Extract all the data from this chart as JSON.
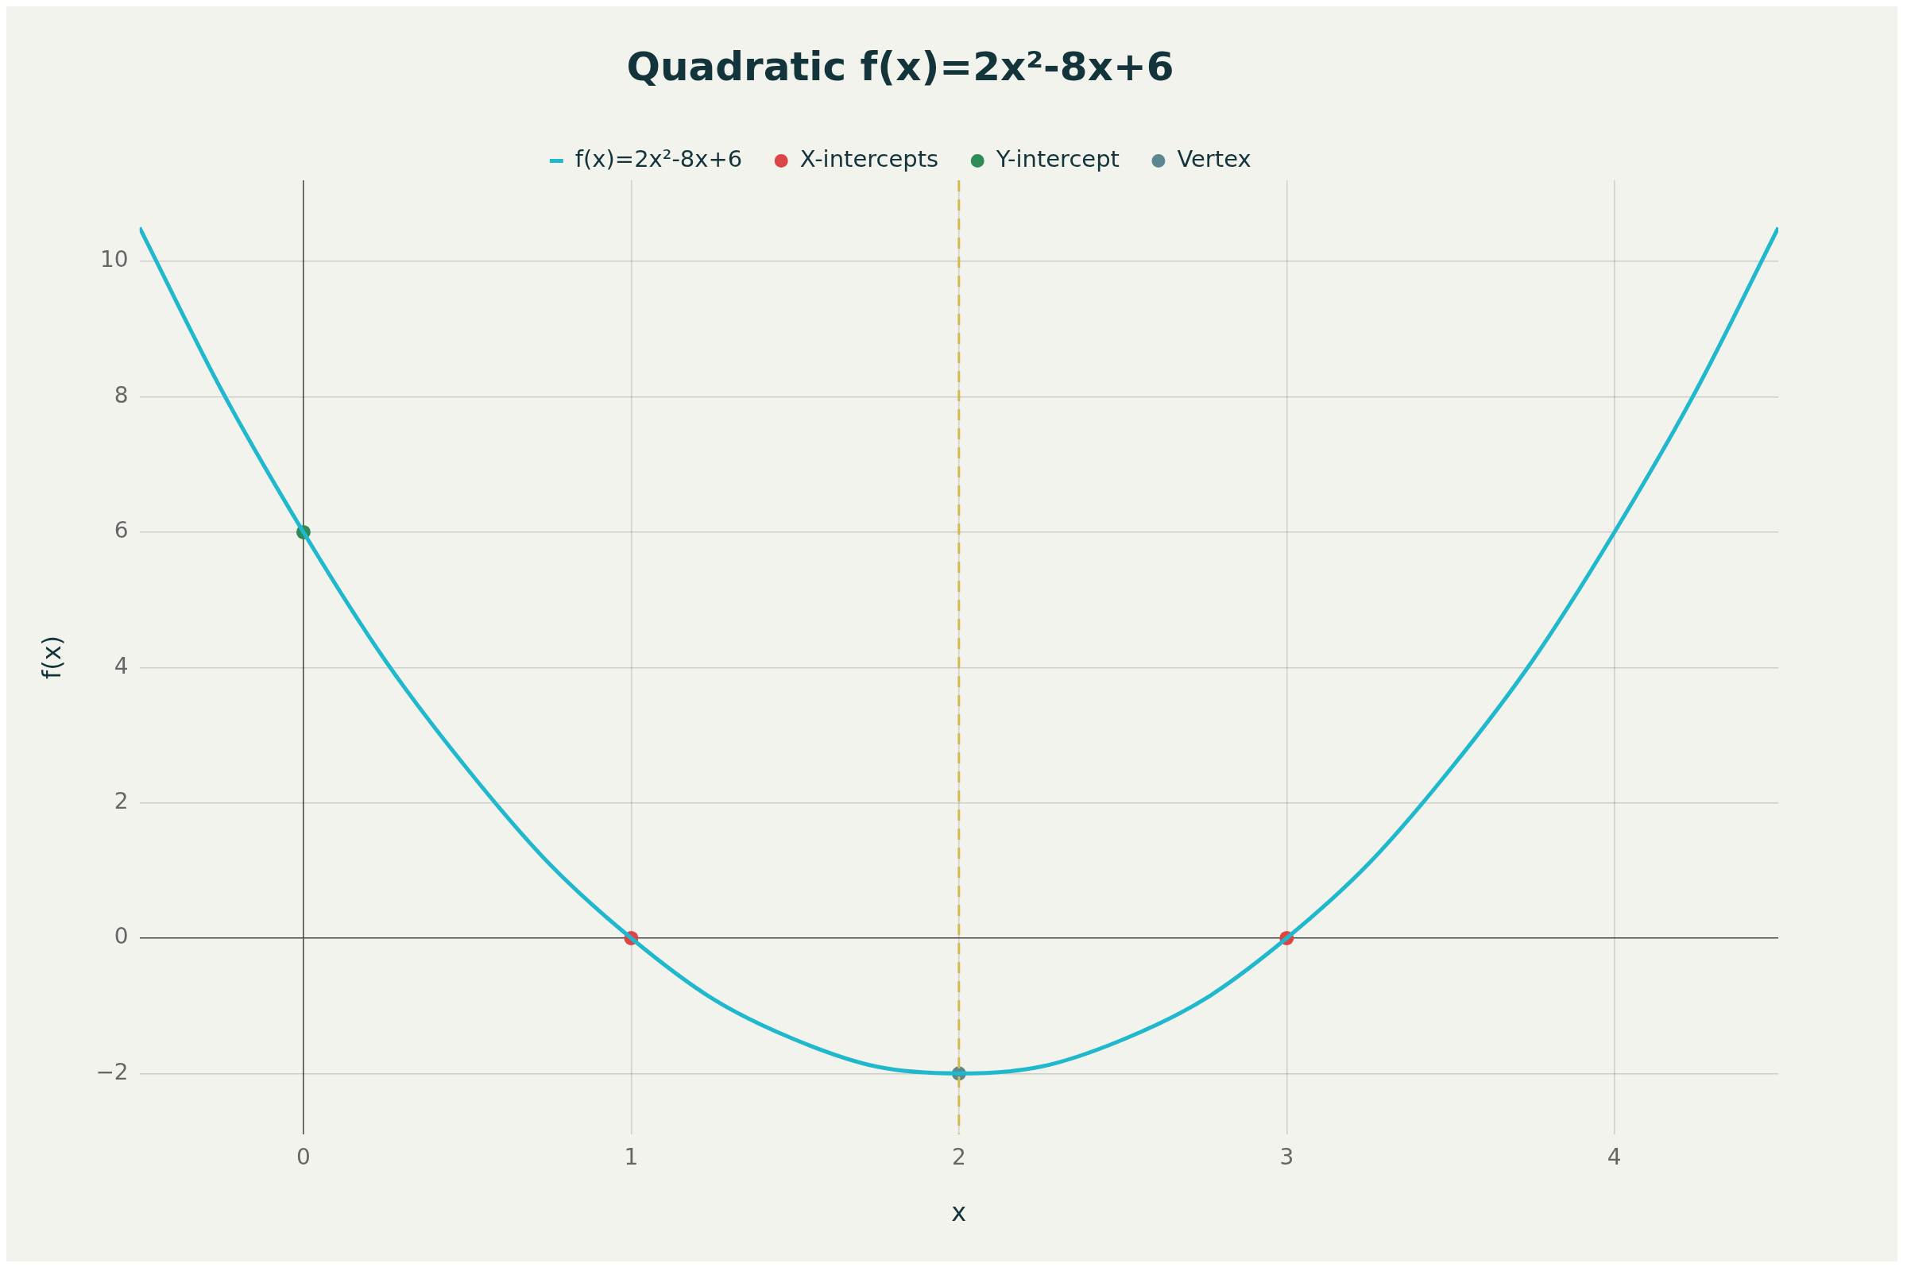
{
  "chart_data": {
    "type": "line",
    "title": "Quadratic f(x)=2x²-8x+6",
    "xlabel": "x",
    "ylabel": "f(x)",
    "xlim": [
      -0.5,
      4.5
    ],
    "ylim": [
      -2.9,
      11.2
    ],
    "xticks": [
      0,
      1,
      2,
      3,
      4
    ],
    "yticks": [
      -2,
      0,
      2,
      4,
      6,
      8,
      10
    ],
    "grid": true,
    "legend": "top",
    "line_style": "solid",
    "ref_lines": [
      {
        "axis": "x",
        "value": 2,
        "color": "#d2ba4c",
        "line_style": "dashed"
      }
    ],
    "series": [
      {
        "name": "f(x)=2x²-8x+6",
        "color": "#1fb8cd",
        "x": [
          -0.5,
          -0.25,
          0,
          0.25,
          0.5,
          0.75,
          1,
          1.25,
          1.5,
          1.75,
          2,
          2.25,
          2.5,
          2.75,
          3,
          3.25,
          3.5,
          3.75,
          4,
          4.25,
          4.5
        ],
        "values": [
          10.5,
          8.1,
          6,
          4.1,
          2.5,
          1.1,
          0,
          -0.9,
          -1.5,
          -1.9,
          -2,
          -1.9,
          -1.5,
          -0.9,
          0,
          1.1,
          2.5,
          4.1,
          6,
          8.1,
          10.5
        ]
      },
      {
        "name": "X-intercepts",
        "type": "scatter",
        "marker": "circle",
        "color": "#db4545",
        "x": [
          1,
          3
        ],
        "values": [
          0,
          0
        ]
      },
      {
        "name": "Y-intercept",
        "type": "scatter",
        "marker": "circle",
        "color": "#2e8b57",
        "x": [
          0
        ],
        "values": [
          6
        ]
      },
      {
        "name": "Vertex",
        "type": "scatter",
        "marker": "circle",
        "color": "#5d878f",
        "x": [
          2
        ],
        "values": [
          -2
        ]
      }
    ]
  }
}
